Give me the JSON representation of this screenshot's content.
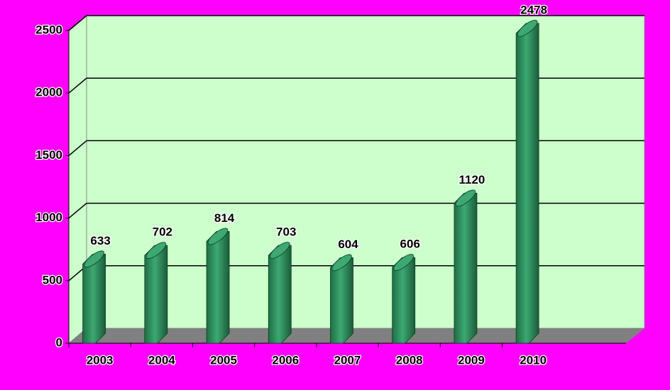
{
  "chart_data": {
    "type": "bar3d",
    "categories": [
      "2003",
      "2004",
      "2005",
      "2006",
      "2007",
      "2008",
      "2009",
      "2010"
    ],
    "values": [
      633,
      702,
      814,
      703,
      604,
      606,
      1120,
      2478
    ],
    "color": "#2e8b57",
    "ylim": [
      0,
      2500
    ],
    "yticks": [
      0,
      500,
      1000,
      1500,
      2000,
      2500
    ],
    "grid": true
  }
}
